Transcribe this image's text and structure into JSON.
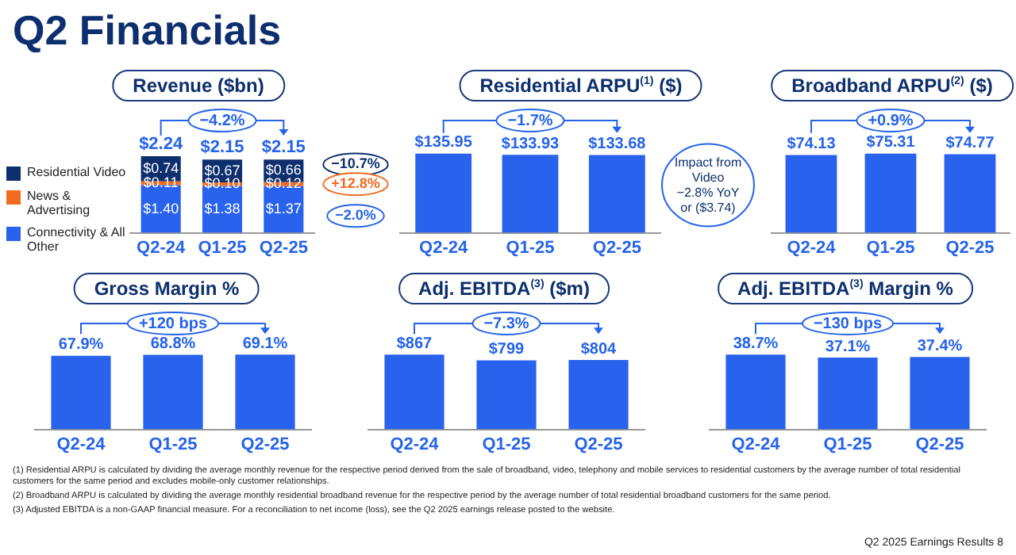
{
  "chart_data": [
    {
      "type": "bar",
      "title": "Revenue ($bn)",
      "categories": [
        "Q2-24",
        "Q1-25",
        "Q2-25"
      ],
      "stacked": true,
      "legend": "left",
      "series": [
        {
          "name": "Connectivity & All Other",
          "color": "#2962ec",
          "values": [
            1.4,
            1.38,
            1.37
          ],
          "value_labels": [
            "$1.40",
            "$1.38",
            "$1.37"
          ]
        },
        {
          "name": "News & Advertising",
          "color": "#f26b21",
          "values": [
            0.11,
            0.1,
            0.12
          ],
          "value_labels": [
            "$0.11",
            "$0.10",
            "$0.12"
          ]
        },
        {
          "name": "Residential Video",
          "color": "#0d2f6e",
          "values": [
            0.74,
            0.67,
            0.66
          ],
          "value_labels": [
            "$0.74",
            "$0.67",
            "$0.66"
          ]
        }
      ],
      "totals": [
        "$2.24",
        "$2.15",
        "$2.15"
      ],
      "annotations": [
        "−4.2%",
        "−10.7%",
        "+12.8%",
        "−2.0%"
      ]
    },
    {
      "type": "bar",
      "title": "Residential ARPU$^{(1)}$ ($)",
      "categories": [
        "Q2-24",
        "Q1-25",
        "Q2-25"
      ],
      "values": [
        135.95,
        133.93,
        133.68
      ],
      "value_labels": [
        "$135.95",
        "$133.93",
        "$133.68"
      ],
      "color": "#2962ec",
      "annotations": [
        "−1.7%",
        "Impact from Video −2.8% YoY or ($3.74)"
      ]
    },
    {
      "type": "bar",
      "title": "Broadband ARPU$^{(2)}$ ($)",
      "categories": [
        "Q2-24",
        "Q1-25",
        "Q2-25"
      ],
      "values": [
        74.13,
        75.31,
        74.77
      ],
      "value_labels": [
        "$74.13",
        "$75.31",
        "$74.77"
      ],
      "color": "#2962ec",
      "annotations": [
        "+0.9%"
      ]
    },
    {
      "type": "bar",
      "title": "Gross Margin %",
      "categories": [
        "Q2-24",
        "Q1-25",
        "Q2-25"
      ],
      "values": [
        67.9,
        68.8,
        69.1
      ],
      "value_labels": [
        "67.9%",
        "68.8%",
        "69.1%"
      ],
      "color": "#2962ec",
      "annotations": [
        "+120 bps"
      ]
    },
    {
      "type": "bar",
      "title": "Adj. EBITDA$^{(3)}$ ($m)",
      "categories": [
        "Q2-24",
        "Q1-25",
        "Q2-25"
      ],
      "values": [
        867,
        799,
        804
      ],
      "value_labels": [
        "$867",
        "$799",
        "$804"
      ],
      "color": "#2962ec",
      "annotations": [
        "−7.3%"
      ]
    },
    {
      "type": "bar",
      "title": "Adj. EBITDA$^{(3)}$ Margin %",
      "categories": [
        "Q2-24",
        "Q1-25",
        "Q2-25"
      ],
      "values": [
        38.7,
        37.1,
        37.4
      ],
      "value_labels": [
        "38.7%",
        "37.1%",
        "37.4%"
      ],
      "color": "#2962ec",
      "annotations": [
        "−130 bps"
      ]
    },
    {
      "type": "other",
      "title": "Q2 Financials",
      "annotations": [
        "(1) Residential ARPU is calculated by dividing the average monthly revenue for the respective period derived from the sale of broadband, video, telephony and mobile services to residential customers by the average number of total residential customers for the same period and excludes mobile-only customer relationships.",
        "(2) Broadband ARPU is calculated by dividing the average monthly residential broadband revenue for the respective period by the average number of total residential broadband customers for the same period.",
        "(3) Adjusted EBITDA is a non-GAAP financial measure. For a reconciliation to net income (loss), see the Q2 2025 earnings release posted to the website.",
        "Q2 2025 Earnings Results",
        "8"
      ]
    }
  ]
}
